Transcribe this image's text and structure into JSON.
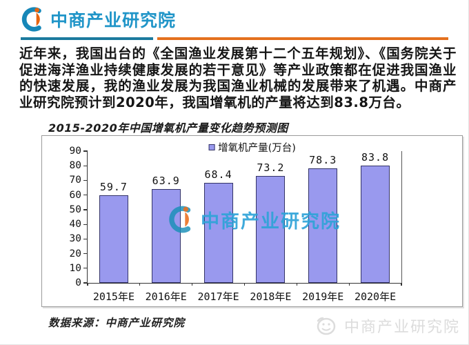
{
  "header": {
    "logo_text": "中商产业研究院"
  },
  "intro_paragraph": "近年来，我国出台的《全国渔业发展第十二个五年规划》、《国务院关于促进海洋渔业持续健康发展的若干意见》等产业政策都在促进我国渔业的快速发展，我的渔业发展为我国渔业机械的发展带来了机遇。中商产业研究院预计到2020年，我国增氧机的产量将达到83.8万台。",
  "chart": {
    "title": "2015-2020年中国增氧机产量变化趋势预测图",
    "legend_label": "增氧机产量(万台)",
    "watermark_text": "中商产业研究院",
    "source_note": "数据来源：中商产业研究院"
  },
  "chart_data": {
    "type": "bar",
    "title": "2015-2020年中国增氧机产量变化趋势预测图",
    "categories": [
      "2015年E",
      "2016年E",
      "2017年E",
      "2018年E",
      "2019年E",
      "2020年E"
    ],
    "series": [
      {
        "name": "增氧机产量(万台)",
        "values": [
          59.7,
          63.9,
          68.4,
          73.2,
          78.3,
          83.8
        ]
      }
    ],
    "ylim": [
      0,
      90
    ],
    "ytick_step": 10,
    "grid": false,
    "legend_position": "top-center",
    "value_labels_shown": true
  },
  "footer_watermark": {
    "text": "中商产业研究院"
  },
  "colors": {
    "brand_blue": "#2095C8",
    "brand_orange": "#E8650F",
    "divider_blue": "#1B7A9E",
    "divider_orange": "#E4711E",
    "bar_fill": "#9999EE",
    "bar_border": "#333366",
    "watermark_blue": "#2FA3D8",
    "footer_watermark_gray": "#DCDCDC"
  }
}
